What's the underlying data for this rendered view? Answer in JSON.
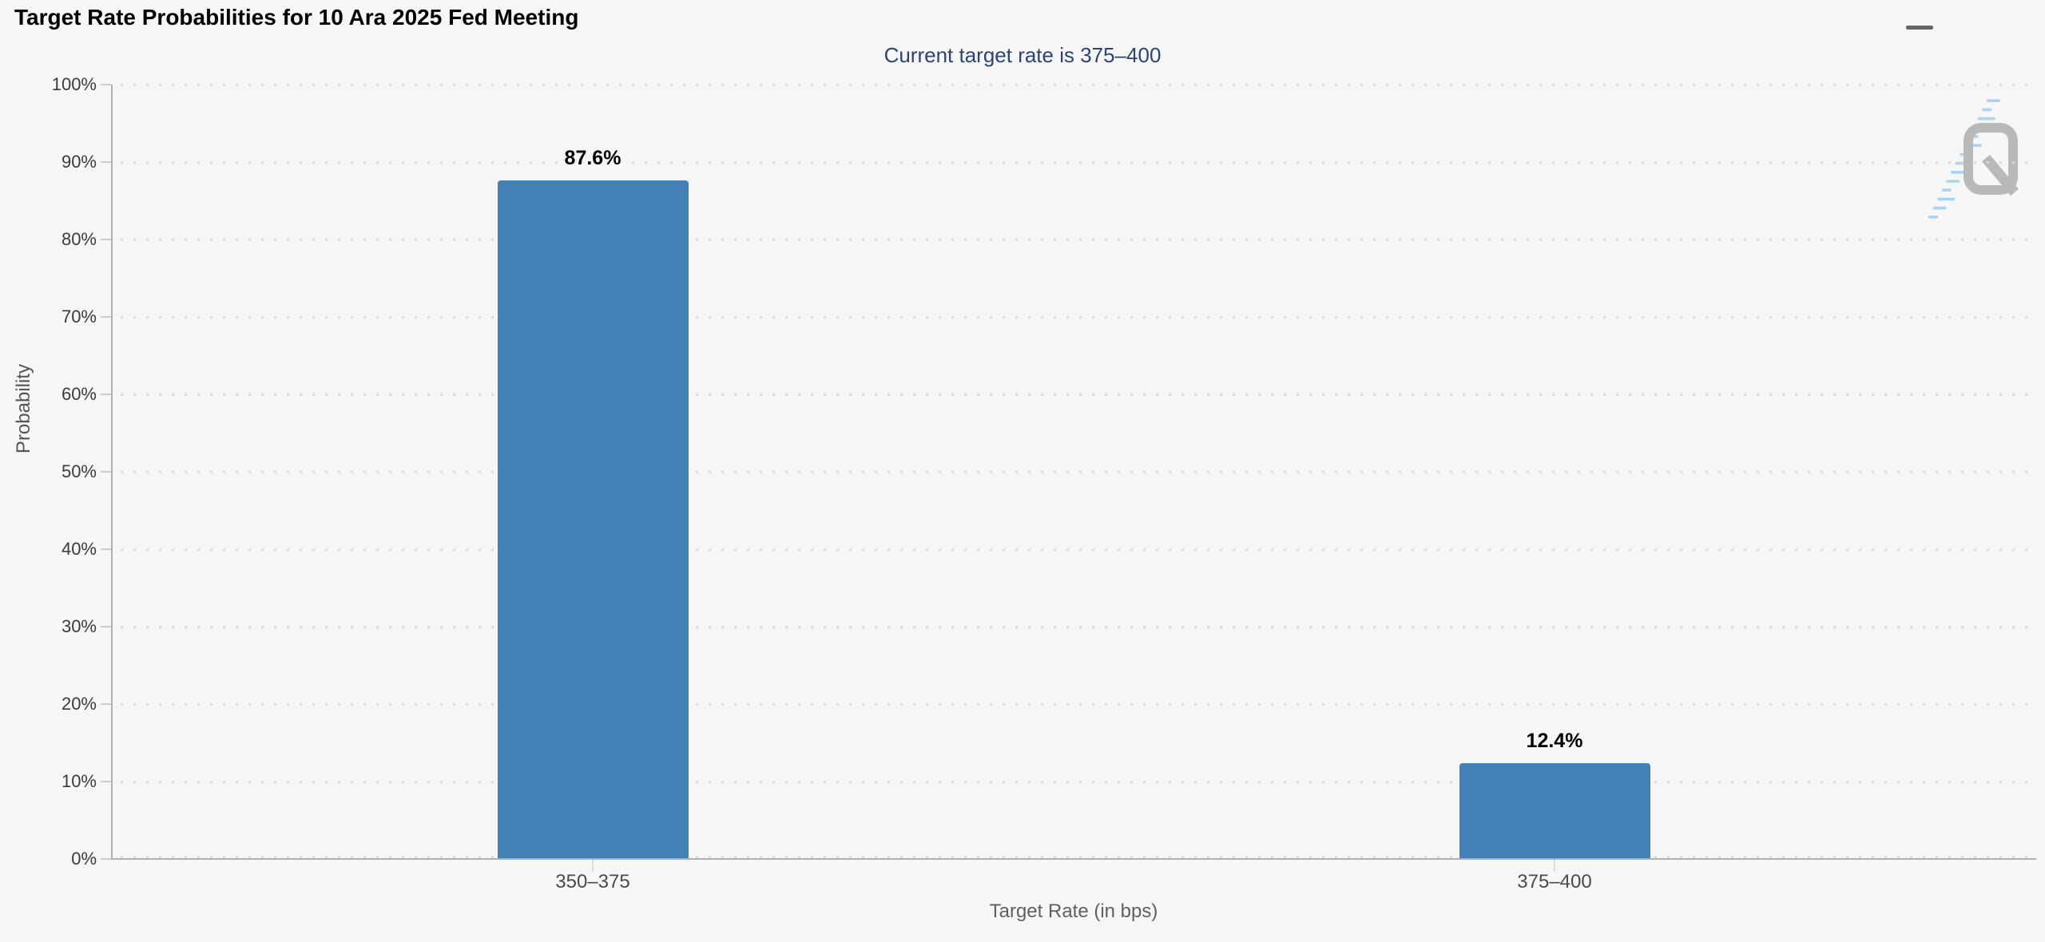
{
  "page": {
    "background_color": "#f6f6f6"
  },
  "menu": {
    "icon": "hamburger-menu-icon"
  },
  "watermark": {
    "letter": "Q",
    "color": "#b9b9b9",
    "dash_color": "#a9d3ee"
  },
  "chart_data": {
    "type": "bar",
    "title": "Target Rate Probabilities for 10 Ara 2025 Fed Meeting",
    "subtitle": "Current target rate is 375–400",
    "categories": [
      "350–375",
      "375–400"
    ],
    "values": [
      87.6,
      12.4
    ],
    "data_labels": [
      "87.6%",
      "12.4%"
    ],
    "xlabel": "Target Rate (in bps)",
    "ylabel": "Probability",
    "ylim": [
      0,
      100
    ],
    "ytick_step": 10,
    "ytick_labels": [
      "0%",
      "10%",
      "20%",
      "30%",
      "40%",
      "50%",
      "60%",
      "70%",
      "80%",
      "90%",
      "100%"
    ],
    "grid": "horizontal-dotted",
    "legend": "none",
    "bar_color": "#4380b6",
    "label_color": "#000000",
    "subtitle_color": "#2e4373"
  }
}
